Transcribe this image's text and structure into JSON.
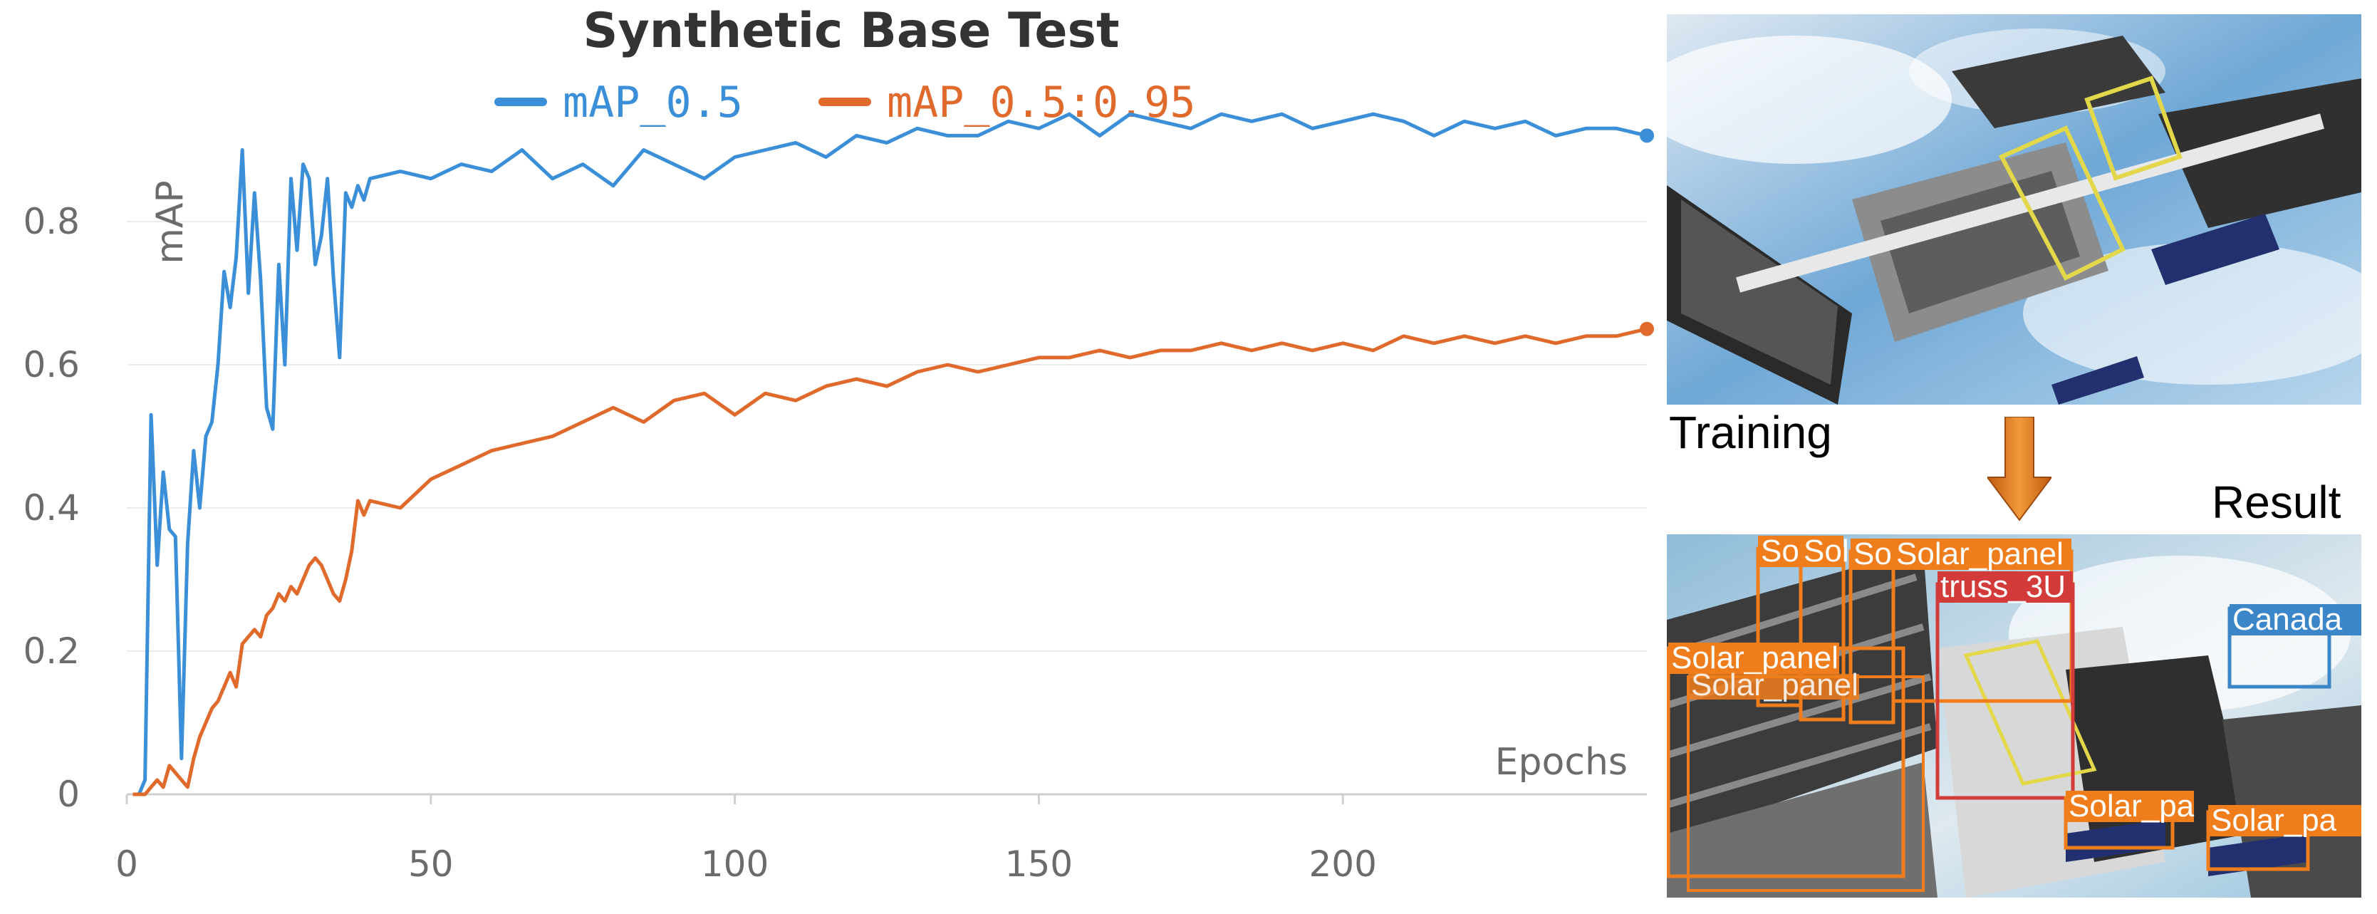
{
  "chart_data": {
    "type": "line",
    "title": "Synthetic Base Test",
    "xlabel": "Epochs",
    "ylabel": "mAP",
    "xlim": [
      0,
      250
    ],
    "ylim": [
      0,
      0.99
    ],
    "xticks": [
      0,
      50,
      100,
      150,
      200
    ],
    "yticks": [
      0,
      0.2,
      0.4,
      0.6,
      0.8
    ],
    "grid": "horizontal",
    "legend": "top-center",
    "series": [
      {
        "name": "mAP_0.5",
        "color": "#3a8fd8",
        "x": [
          1,
          2,
          3,
          4,
          5,
          6,
          7,
          8,
          9,
          10,
          11,
          12,
          13,
          14,
          15,
          16,
          17,
          18,
          19,
          20,
          21,
          22,
          23,
          24,
          25,
          26,
          27,
          28,
          29,
          30,
          31,
          32,
          33,
          34,
          35,
          36,
          37,
          38,
          39,
          40,
          45,
          50,
          55,
          60,
          65,
          70,
          75,
          80,
          85,
          90,
          95,
          100,
          105,
          110,
          115,
          120,
          125,
          130,
          135,
          140,
          145,
          150,
          155,
          160,
          165,
          170,
          175,
          180,
          185,
          190,
          195,
          200,
          205,
          210,
          215,
          220,
          225,
          230,
          235,
          240,
          245,
          250
        ],
        "y": [
          0,
          0,
          0.02,
          0.53,
          0.32,
          0.45,
          0.37,
          0.36,
          0.05,
          0.35,
          0.48,
          0.4,
          0.5,
          0.52,
          0.6,
          0.73,
          0.68,
          0.75,
          0.9,
          0.7,
          0.84,
          0.72,
          0.54,
          0.51,
          0.74,
          0.6,
          0.86,
          0.76,
          0.88,
          0.86,
          0.74,
          0.78,
          0.86,
          0.72,
          0.61,
          0.84,
          0.82,
          0.85,
          0.83,
          0.86,
          0.87,
          0.86,
          0.88,
          0.87,
          0.9,
          0.86,
          0.88,
          0.85,
          0.9,
          0.88,
          0.86,
          0.89,
          0.9,
          0.91,
          0.89,
          0.92,
          0.91,
          0.93,
          0.92,
          0.92,
          0.94,
          0.93,
          0.95,
          0.92,
          0.95,
          0.94,
          0.93,
          0.95,
          0.94,
          0.95,
          0.93,
          0.94,
          0.95,
          0.94,
          0.92,
          0.94,
          0.93,
          0.94,
          0.92,
          0.93,
          0.93,
          0.92
        ]
      },
      {
        "name": "mAP_0.5:0.95",
        "color": "#e06a2c",
        "x": [
          1,
          2,
          3,
          4,
          5,
          6,
          7,
          8,
          9,
          10,
          11,
          12,
          13,
          14,
          15,
          16,
          17,
          18,
          19,
          20,
          21,
          22,
          23,
          24,
          25,
          26,
          27,
          28,
          29,
          30,
          31,
          32,
          33,
          34,
          35,
          36,
          37,
          38,
          39,
          40,
          45,
          50,
          55,
          60,
          65,
          70,
          75,
          80,
          85,
          90,
          95,
          100,
          105,
          110,
          115,
          120,
          125,
          130,
          135,
          140,
          145,
          150,
          155,
          160,
          165,
          170,
          175,
          180,
          185,
          190,
          195,
          200,
          205,
          210,
          215,
          220,
          225,
          230,
          235,
          240,
          245,
          250
        ],
        "y": [
          0,
          0,
          0,
          0.01,
          0.02,
          0.01,
          0.04,
          0.03,
          0.02,
          0.01,
          0.05,
          0.08,
          0.1,
          0.12,
          0.13,
          0.15,
          0.17,
          0.15,
          0.21,
          0.22,
          0.23,
          0.22,
          0.25,
          0.26,
          0.28,
          0.27,
          0.29,
          0.28,
          0.3,
          0.32,
          0.33,
          0.32,
          0.3,
          0.28,
          0.27,
          0.3,
          0.34,
          0.41,
          0.39,
          0.41,
          0.4,
          0.44,
          0.46,
          0.48,
          0.49,
          0.5,
          0.52,
          0.54,
          0.52,
          0.55,
          0.56,
          0.53,
          0.56,
          0.55,
          0.57,
          0.58,
          0.57,
          0.59,
          0.6,
          0.59,
          0.6,
          0.61,
          0.61,
          0.62,
          0.61,
          0.62,
          0.62,
          0.63,
          0.62,
          0.63,
          0.62,
          0.63,
          0.62,
          0.64,
          0.63,
          0.64,
          0.63,
          0.64,
          0.63,
          0.64,
          0.64,
          0.65
        ]
      }
    ]
  },
  "figure": {
    "training_caption": "Training",
    "result_caption": "Result",
    "arrow_color": "#e07a1a",
    "detections": [
      {
        "label": "Sol",
        "color": "#f07d1c"
      },
      {
        "label": "Sol",
        "color": "#f07d1c"
      },
      {
        "label": "Sol",
        "color": "#f07d1c"
      },
      {
        "label": "Solar_panel",
        "color": "#f07d1c"
      },
      {
        "label": "truss_3U",
        "color": "#d33a3a"
      },
      {
        "label": "Canada",
        "color": "#3a86c8"
      },
      {
        "label": "Solar_panel",
        "color": "#f07d1c"
      },
      {
        "label": "Solar_panel",
        "color": "#f07d1c"
      },
      {
        "label": "Solar_pa",
        "color": "#f07d1c"
      },
      {
        "label": "Solar_pa",
        "color": "#f07d1c"
      }
    ]
  }
}
